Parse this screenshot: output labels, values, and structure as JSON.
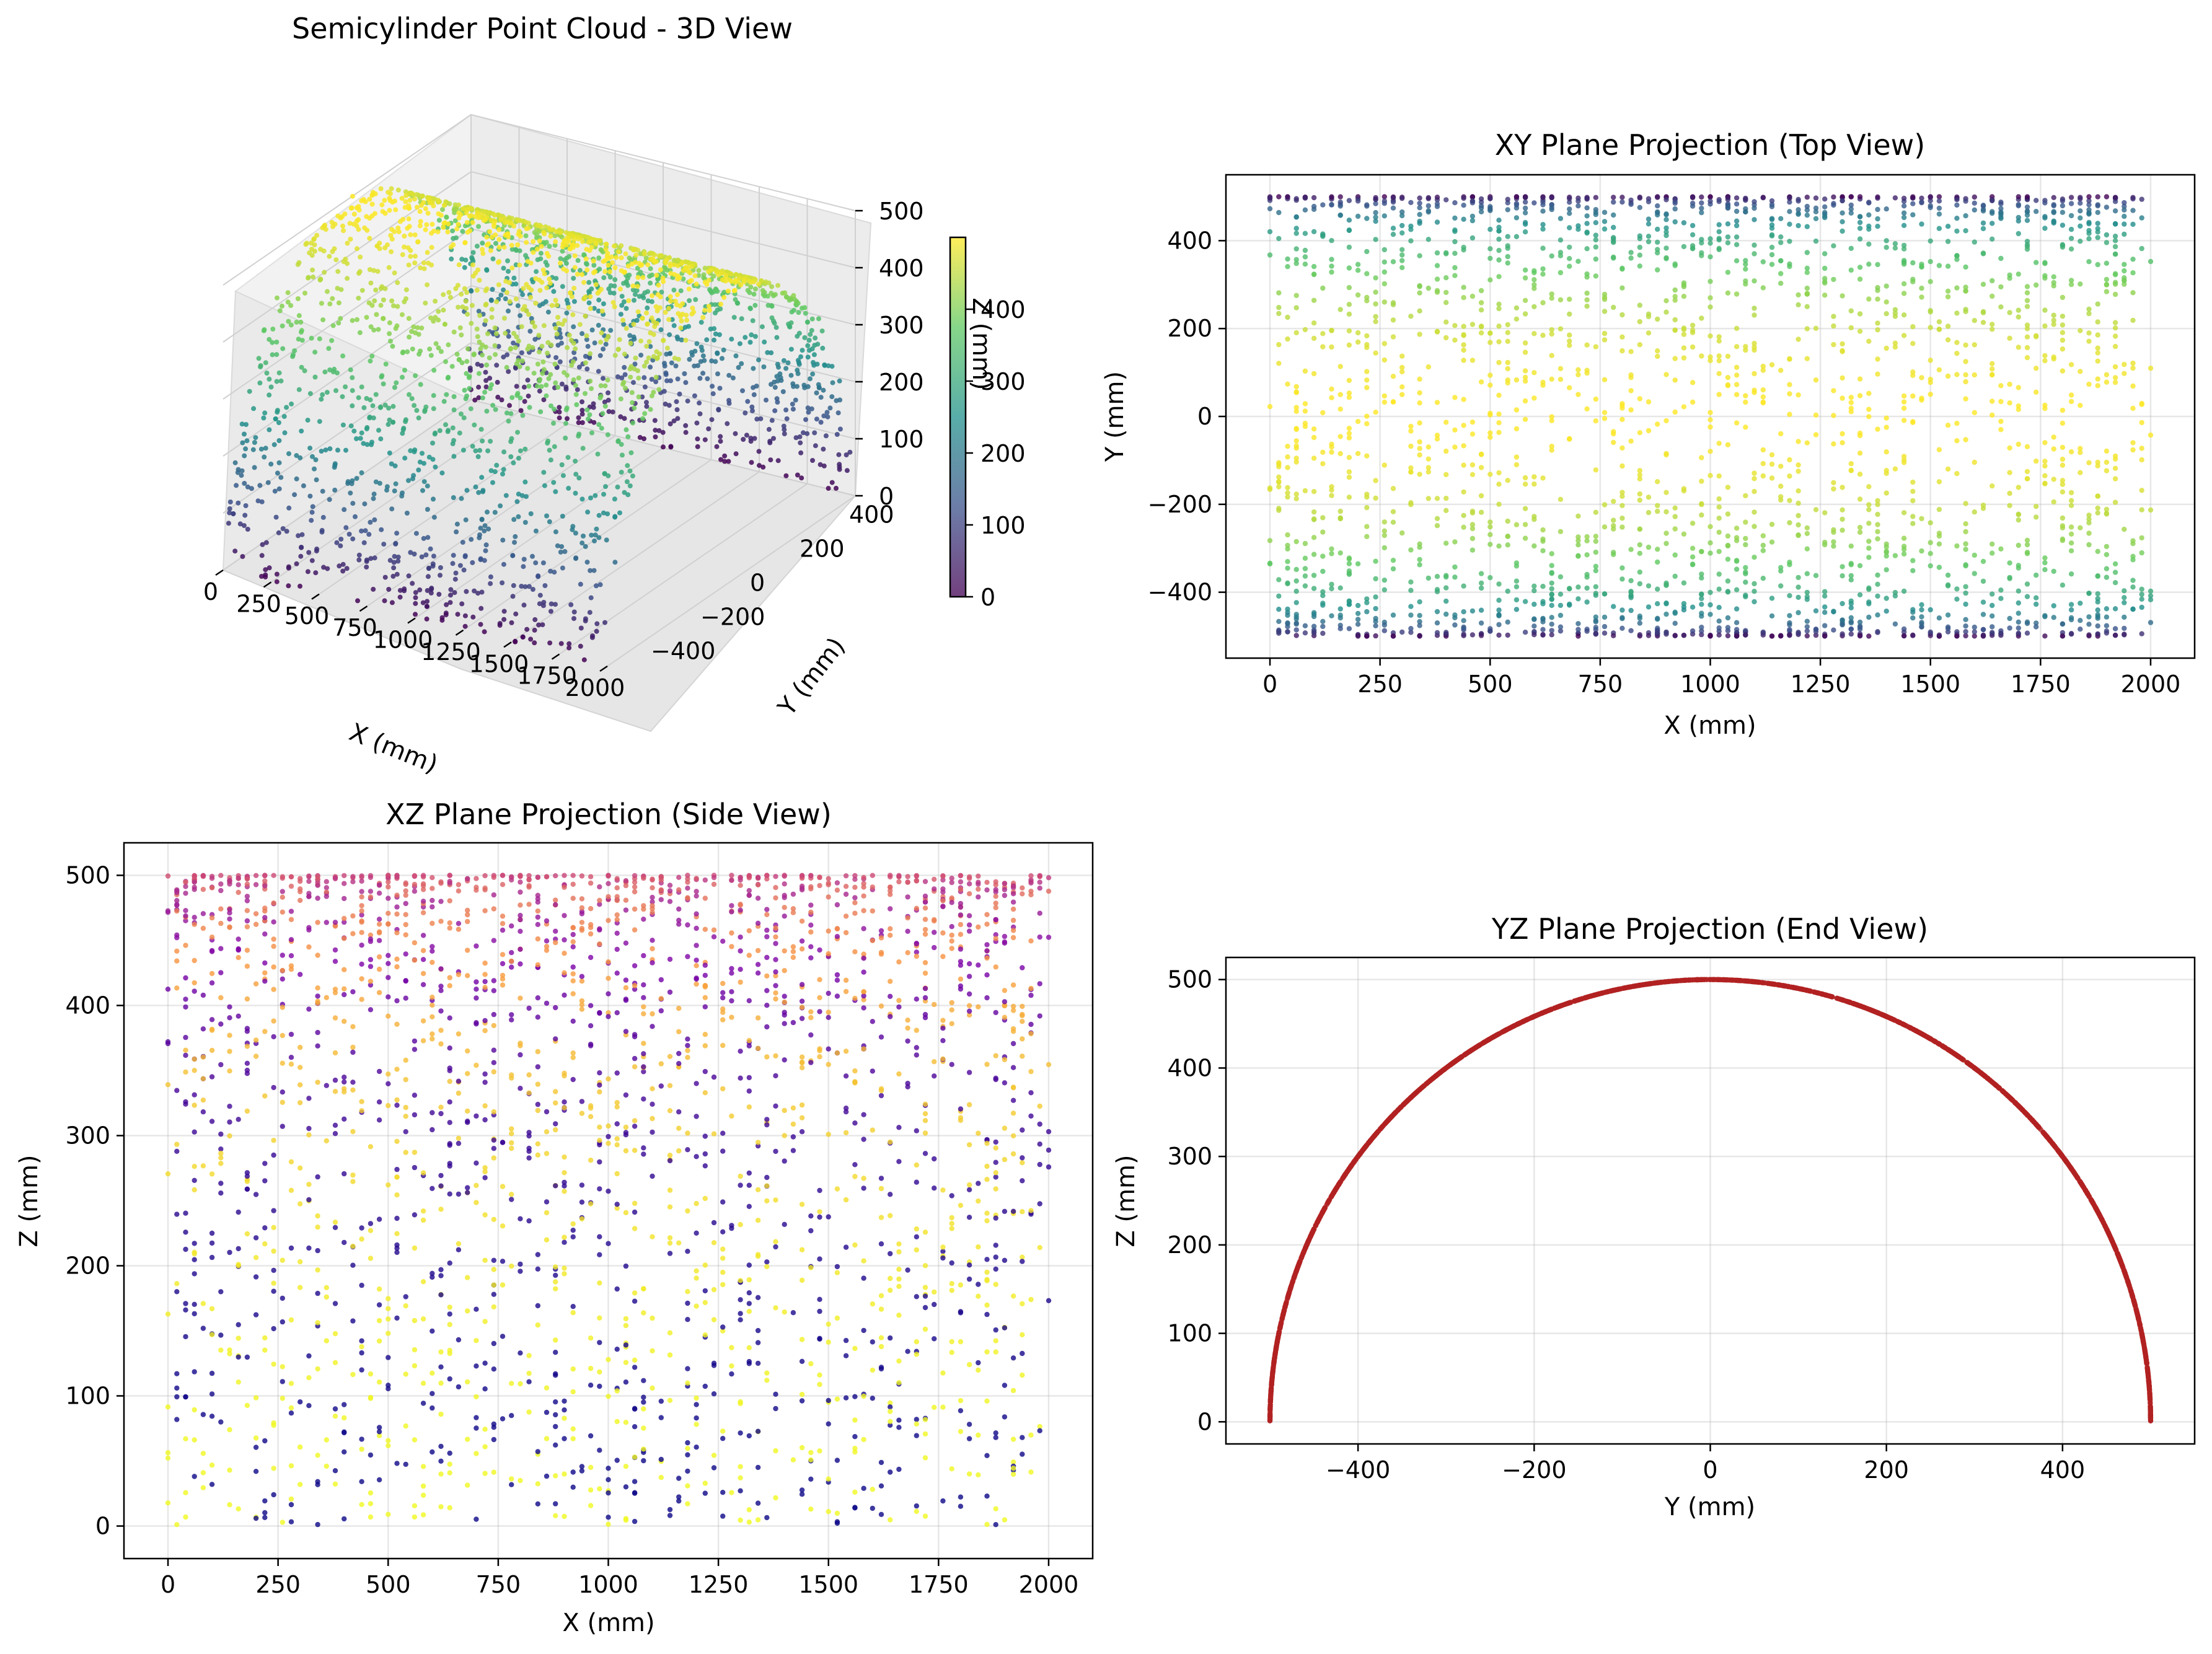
{
  "figure": {
    "colors": {
      "viridis": [
        "#440154",
        "#3b528b",
        "#21918c",
        "#5ec962",
        "#fde725"
      ],
      "plasma": [
        "#0d0887",
        "#7e03a8",
        "#cc4778",
        "#f89540",
        "#f0f921"
      ],
      "end_view": "#b22222"
    }
  },
  "chart_data": [
    {
      "id": "p3d",
      "type": "scatter",
      "title": "Semicylinder Point Cloud - 3D View",
      "xlabel": "X (mm)",
      "ylabel": "Y (mm)",
      "zlabel": "Z (mm)",
      "xlim": [
        0,
        2000
      ],
      "ylim": [
        -500,
        500
      ],
      "zlim": [
        0,
        500
      ],
      "xticks": [
        "0",
        "250",
        "500",
        "750",
        "1000",
        "1250",
        "1500",
        "1750",
        "2000"
      ],
      "yticks": [
        "-400",
        "-200",
        "0",
        "200",
        "400"
      ],
      "zticks": [
        "0",
        "100",
        "200",
        "300",
        "400",
        "500"
      ],
      "colormap": "viridis",
      "color_by": "Z",
      "colorbar": {
        "ticks": [
          "0",
          "100",
          "200",
          "300",
          "400"
        ],
        "range": [
          0,
          500
        ],
        "label": "Z (mm)"
      },
      "shape": {
        "radius": 500,
        "length": 2000,
        "points": 2500
      },
      "grid": true
    },
    {
      "id": "pxy",
      "type": "scatter",
      "title": "XY Plane Projection (Top View)",
      "xlabel": "X (mm)",
      "ylabel": "Y (mm)",
      "xlim": [
        -100,
        2100
      ],
      "ylim": [
        -550,
        550
      ],
      "xticks": [
        0,
        250,
        500,
        750,
        1000,
        1250,
        1500,
        1750,
        2000
      ],
      "yticks": [
        -400,
        -200,
        0,
        200,
        400
      ],
      "colormap": "viridis",
      "color_by": "Z",
      "grid": true
    },
    {
      "id": "pxz",
      "type": "scatter",
      "title": "XZ Plane Projection (Side View)",
      "xlabel": "X (mm)",
      "ylabel": "Z (mm)",
      "xlim": [
        -100,
        2100
      ],
      "ylim": [
        -25,
        525
      ],
      "xticks": [
        0,
        250,
        500,
        750,
        1000,
        1250,
        1500,
        1750,
        2000
      ],
      "yticks": [
        0,
        100,
        200,
        300,
        400,
        500
      ],
      "colormap": "plasma",
      "color_by": "Y",
      "grid": true
    },
    {
      "id": "pyz",
      "type": "scatter",
      "title": "YZ Plane Projection (End View)",
      "xlabel": "Y (mm)",
      "ylabel": "Z (mm)",
      "xlim": [
        -550,
        550
      ],
      "ylim": [
        -25,
        525
      ],
      "xticks": [
        -400,
        -200,
        0,
        200,
        400
      ],
      "yticks": [
        0,
        100,
        200,
        300,
        400,
        500
      ],
      "color": "#b22222",
      "grid": true
    }
  ]
}
